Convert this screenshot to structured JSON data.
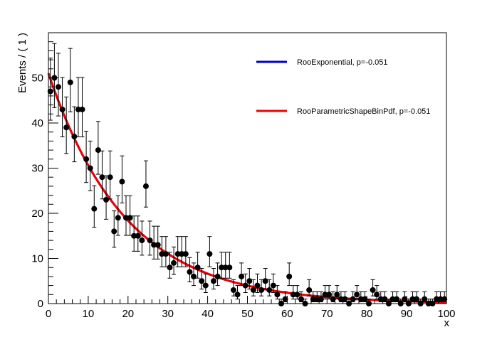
{
  "chart_data": {
    "type": "scatter",
    "title": "",
    "xlabel": "x",
    "ylabel": "Events / ( 1 )",
    "xlim": [
      0,
      100
    ],
    "ylim": [
      0,
      60
    ],
    "grid": false,
    "x_ticks": [
      0,
      10,
      20,
      30,
      40,
      50,
      60,
      70,
      80,
      90,
      100
    ],
    "x_tick_labels": [
      "0",
      "10",
      "20",
      "30",
      "40",
      "50",
      "60",
      "70",
      "80",
      "90",
      "100"
    ],
    "y_ticks": [
      0,
      10,
      20,
      30,
      40,
      50
    ],
    "y_tick_labels": [
      "0",
      "10",
      "20",
      "30",
      "40",
      "50"
    ],
    "legend_position": "top-right",
    "data_points": {
      "name": "data",
      "x": [
        0.5,
        1.5,
        2.5,
        3.5,
        4.5,
        5.5,
        6.5,
        7.5,
        8.5,
        9.5,
        10.5,
        11.5,
        12.5,
        13.5,
        14.5,
        15.5,
        16.5,
        17.5,
        18.5,
        19.5,
        20.5,
        21.5,
        22.5,
        23.5,
        24.5,
        25.5,
        26.5,
        27.5,
        28.5,
        29.5,
        30.5,
        31.5,
        32.5,
        33.5,
        34.5,
        35.5,
        36.5,
        37.5,
        38.5,
        39.5,
        40.5,
        41.5,
        42.5,
        43.5,
        44.5,
        45.5,
        46.5,
        47.5,
        48.5,
        49.5,
        50.5,
        51.5,
        52.5,
        53.5,
        54.5,
        55.5,
        56.5,
        57.5,
        58.5,
        59.5,
        60.5,
        61.5,
        62.5,
        63.5,
        64.5,
        65.5,
        66.5,
        67.5,
        68.5,
        69.5,
        70.5,
        71.5,
        72.5,
        73.5,
        74.5,
        75.5,
        76.5,
        77.5,
        78.5,
        79.5,
        80.5,
        81.5,
        82.5,
        83.5,
        84.5,
        85.5,
        86.5,
        87.5,
        88.5,
        89.5,
        90.5,
        91.5,
        92.5,
        93.5,
        94.5,
        95.5,
        96.5,
        97.5,
        98.5,
        99.5
      ],
      "y": [
        47,
        50,
        48,
        43,
        39,
        49,
        37,
        43,
        43,
        32,
        30,
        21,
        34,
        28,
        23,
        28,
        16,
        19,
        27,
        19,
        19,
        15,
        15,
        14,
        26,
        14,
        13,
        13,
        11,
        11,
        8,
        9,
        11,
        11,
        11,
        7,
        6,
        8,
        5,
        4,
        11,
        5,
        6,
        8,
        8,
        8,
        3,
        2,
        6,
        4,
        5,
        3,
        4,
        3,
        5,
        3,
        4,
        2,
        0,
        1,
        6,
        2,
        2,
        1,
        0,
        3,
        1,
        1,
        1,
        2,
        2,
        1,
        2,
        1,
        1,
        0,
        1,
        2,
        1,
        1,
        0,
        3,
        2,
        1,
        1,
        0,
        1,
        1,
        0,
        1,
        0,
        1,
        1,
        0,
        1,
        0,
        0,
        1,
        1,
        1
      ]
    },
    "curves": [
      {
        "name": "RooExponential, p=-0.051",
        "color": "#0000cc",
        "slope": -0.051,
        "norm_at_zero": 51
      },
      {
        "name": "RooParametricShapeBinPdf, p=-0.051",
        "color": "#ee0000",
        "slope": -0.051,
        "norm_at_zero": 51
      }
    ]
  }
}
